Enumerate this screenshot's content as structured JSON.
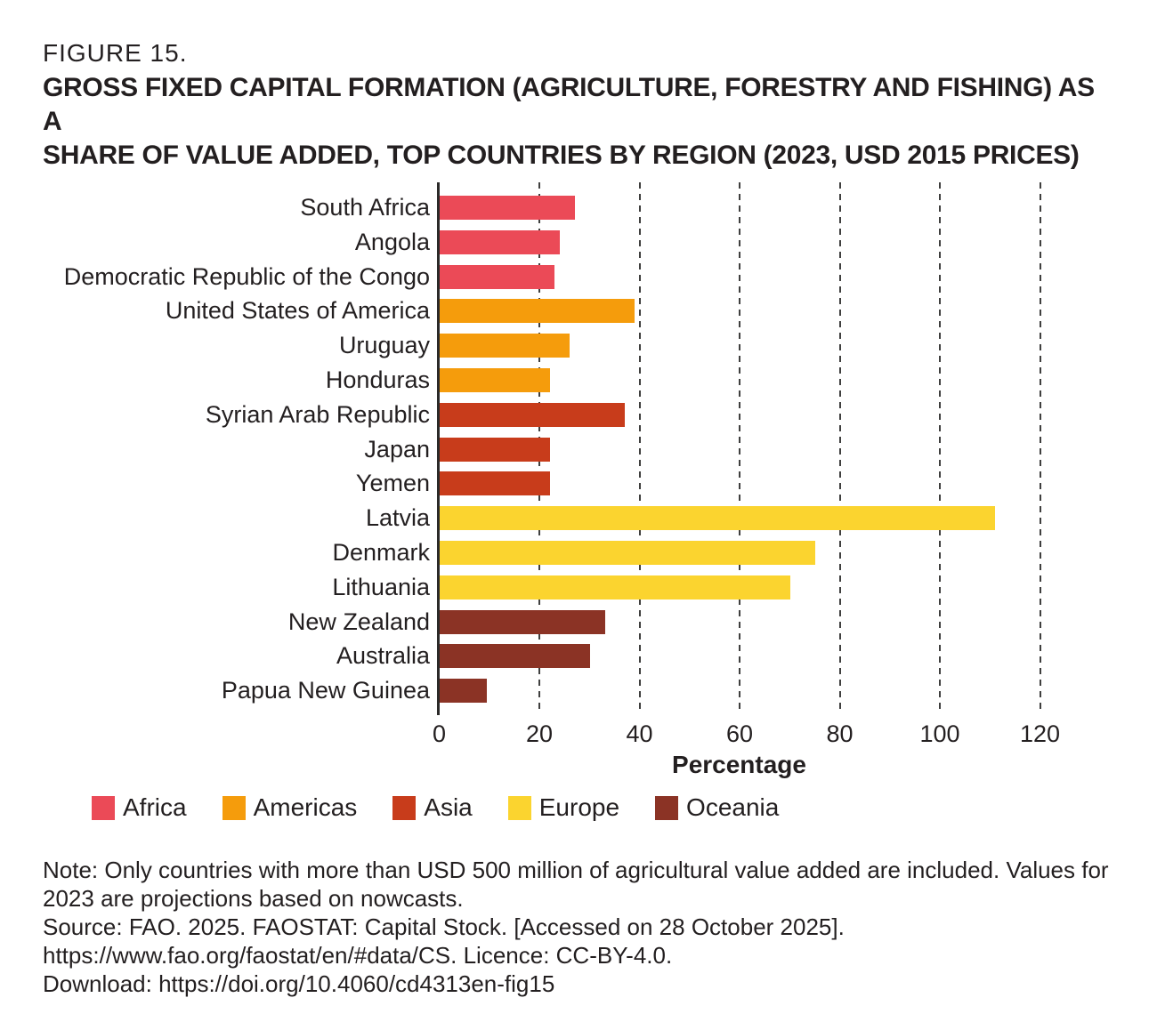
{
  "figure": {
    "label": "FIGURE 15.",
    "title_line1": "GROSS FIXED CAPITAL FORMATION (AGRICULTURE, FORESTRY AND FISHING) AS A",
    "title_line2": "SHARE OF VALUE ADDED, TOP COUNTRIES BY REGION (2023, USD 2015 PRICES)"
  },
  "chart_data": {
    "type": "bar",
    "orientation": "horizontal",
    "title": "Gross fixed capital formation (agriculture, forestry and fishing) as a share of value added, top countries by region (2023, USD 2015 prices)",
    "xlabel": "Percentage",
    "ylabel": "",
    "xlim": [
      0,
      120
    ],
    "xticks": [
      0,
      20,
      40,
      60,
      80,
      100,
      120
    ],
    "grid": "dashed-vertical",
    "legend_position": "bottom",
    "regions": [
      {
        "name": "Africa",
        "color": "#EB4A57"
      },
      {
        "name": "Americas",
        "color": "#F59C0C"
      },
      {
        "name": "Asia",
        "color": "#C83C1B"
      },
      {
        "name": "Europe",
        "color": "#FBD42F"
      },
      {
        "name": "Oceania",
        "color": "#8B3325"
      }
    ],
    "bars": [
      {
        "country": "South Africa",
        "region": "Africa",
        "value": 27
      },
      {
        "country": "Angola",
        "region": "Africa",
        "value": 24
      },
      {
        "country": "Democratic Republic of the Congo",
        "region": "Africa",
        "value": 23
      },
      {
        "country": "United States of America",
        "region": "Americas",
        "value": 39
      },
      {
        "country": "Uruguay",
        "region": "Americas",
        "value": 26
      },
      {
        "country": "Honduras",
        "region": "Americas",
        "value": 22
      },
      {
        "country": "Syrian Arab Republic",
        "region": "Asia",
        "value": 37
      },
      {
        "country": "Japan",
        "region": "Asia",
        "value": 22
      },
      {
        "country": "Yemen",
        "region": "Asia",
        "value": 22
      },
      {
        "country": "Latvia",
        "region": "Europe",
        "value": 111
      },
      {
        "country": "Denmark",
        "region": "Europe",
        "value": 75
      },
      {
        "country": "Lithuania",
        "region": "Europe",
        "value": 70
      },
      {
        "country": "New Zealand",
        "region": "Oceania",
        "value": 33
      },
      {
        "country": "Australia",
        "region": "Oceania",
        "value": 30
      },
      {
        "country": "Papua New Guinea",
        "region": "Oceania",
        "value": 9.5
      }
    ]
  },
  "notes": {
    "line1": "Note: Only countries with more than USD 500 million of agricultural value added are included. Values for",
    "line2": "2023 are projections based on nowcasts.",
    "line3": "Source: FAO. 2025. FAOSTAT: Capital Stock. [Accessed on 28 October 2025].",
    "line4": "https://www.fao.org/faostat/en/#data/CS. Licence: CC-BY-4.0.",
    "line5": "Download: https://doi.org/10.4060/cd4313en-fig15"
  },
  "colors": {
    "text": "#231F20",
    "axis": "#2B2A29",
    "grid": "#3F3F3E",
    "background": "#FFFFFF"
  }
}
